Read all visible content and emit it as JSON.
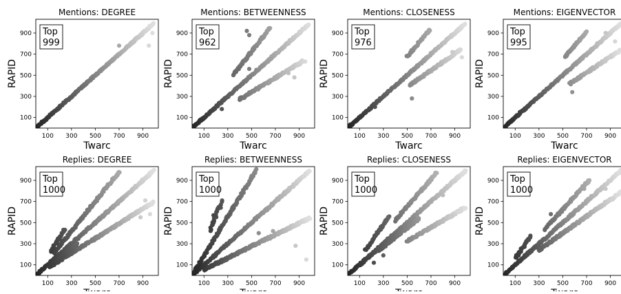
{
  "chart_data": [
    {
      "type": "scatter",
      "title": "Mentions: DEGREE",
      "xlabel": "Twarc",
      "ylabel": "RAPID",
      "annotation": {
        "line1": "Top",
        "line2": "999"
      },
      "xticks": [
        100,
        300,
        500,
        700,
        900
      ],
      "yticks": [
        100,
        300,
        500,
        700,
        900
      ],
      "xlim": [
        0,
        1030
      ],
      "ylim": [
        0,
        1030
      ],
      "series": [
        {
          "slope": 1.0,
          "from": 0,
          "to": 990,
          "spread": 8
        }
      ],
      "outliers": [
        [
          950,
          780
        ],
        [
          980,
          900
        ],
        [
          700,
          780
        ]
      ]
    },
    {
      "type": "scatter",
      "title": "Mentions: BETWEENNESS",
      "xlabel": "Twarc",
      "ylabel": "RAPID",
      "annotation": {
        "line1": "Top",
        "line2": "962"
      },
      "xticks": [
        100,
        300,
        500,
        700,
        900
      ],
      "yticks": [
        100,
        300,
        500,
        700,
        900
      ],
      "xlim": [
        0,
        1030
      ],
      "ylim": [
        0,
        1030
      ],
      "series": [
        {
          "slope": 1.0,
          "from": 0,
          "to": 980,
          "spread": 8
        },
        {
          "slope": 1.45,
          "from": 350,
          "to": 650,
          "spread": 10
        },
        {
          "slope": 0.68,
          "from": 400,
          "to": 930,
          "spread": 10
        }
      ],
      "outliers": [
        [
          460,
          920
        ],
        [
          480,
          880
        ],
        [
          250,
          180
        ],
        [
          950,
          630
        ],
        [
          810,
          520
        ],
        [
          860,
          480
        ],
        [
          480,
          560
        ]
      ]
    },
    {
      "type": "scatter",
      "title": "Mentions: CLOSENESS",
      "xlabel": "Twarc",
      "ylabel": "RAPID",
      "annotation": {
        "line1": "Top",
        "line2": "976"
      },
      "xticks": [
        100,
        300,
        500,
        700,
        900
      ],
      "yticks": [
        100,
        300,
        500,
        700,
        900
      ],
      "xlim": [
        0,
        1030
      ],
      "ylim": [
        0,
        1030
      ],
      "series": [
        {
          "slope": 1.0,
          "from": 0,
          "to": 990,
          "spread": 8
        },
        {
          "slope": 1.35,
          "from": 500,
          "to": 690,
          "spread": 9
        },
        {
          "slope": 0.78,
          "from": 520,
          "to": 950,
          "spread": 9
        }
      ],
      "outliers": [
        [
          540,
          280
        ],
        [
          230,
          200
        ],
        [
          960,
          670
        ],
        [
          880,
          720
        ]
      ]
    },
    {
      "type": "scatter",
      "title": "Mentions: EIGENVECTOR",
      "xlabel": "Twarc",
      "ylabel": "RAPID",
      "annotation": {
        "line1": "Top",
        "line2": "995"
      },
      "xticks": [
        100,
        300,
        500,
        700,
        900
      ],
      "yticks": [
        100,
        300,
        500,
        700,
        900
      ],
      "xlim": [
        0,
        1030
      ],
      "ylim": [
        0,
        1030
      ],
      "series": [
        {
          "slope": 1.0,
          "from": 0,
          "to": 990,
          "spread": 8
        },
        {
          "slope": 1.3,
          "from": 520,
          "to": 700,
          "spread": 9
        },
        {
          "slope": 0.75,
          "from": 560,
          "to": 980,
          "spread": 9
        }
      ],
      "outliers": [
        [
          580,
          340
        ],
        [
          940,
          820
        ],
        [
          860,
          900
        ],
        [
          900,
          680
        ]
      ]
    },
    {
      "type": "scatter",
      "title": "Replies: DEGREE",
      "xlabel": "Twarc",
      "ylabel": "RAPID",
      "annotation": {
        "line1": "Top",
        "line2": "1000"
      },
      "xticks": [
        100,
        300,
        500,
        700,
        900
      ],
      "yticks": [
        100,
        300,
        500,
        700,
        900
      ],
      "xlim": [
        0,
        1030
      ],
      "ylim": [
        0,
        1030
      ],
      "series": [
        {
          "slope": 1.0,
          "from": 0,
          "to": 990,
          "spread": 9
        },
        {
          "slope": 1.4,
          "from": 150,
          "to": 700,
          "spread": 10
        },
        {
          "slope": 0.7,
          "from": 120,
          "to": 990,
          "spread": 10
        },
        {
          "slope": 1.8,
          "from": 130,
          "to": 240,
          "spread": 14
        },
        {
          "slope": 0.85,
          "from": 150,
          "to": 350,
          "spread": 10
        }
      ],
      "outliers": [
        [
          880,
          550
        ],
        [
          960,
          580
        ],
        [
          700,
          490
        ],
        [
          920,
          710
        ]
      ]
    },
    {
      "type": "scatter",
      "title": "Replies: BETWEENNESS",
      "xlabel": "Twarc",
      "ylabel": "RAPID",
      "annotation": {
        "line1": "Top",
        "line2": "1000"
      },
      "xticks": [
        100,
        300,
        500,
        700,
        900
      ],
      "yticks": [
        100,
        300,
        500,
        700,
        900
      ],
      "xlim": [
        0,
        1030
      ],
      "ylim": [
        0,
        1030
      ],
      "series": [
        {
          "slope": 1.0,
          "from": 0,
          "to": 990,
          "spread": 9
        },
        {
          "slope": 1.85,
          "from": 0,
          "to": 540,
          "spread": 10
        },
        {
          "slope": 0.55,
          "from": 100,
          "to": 990,
          "spread": 10
        },
        {
          "slope": 2.8,
          "from": 150,
          "to": 250,
          "spread": 16
        }
      ],
      "outliers": [
        [
          190,
          930
        ],
        [
          200,
          820
        ],
        [
          180,
          570
        ],
        [
          870,
          280
        ],
        [
          960,
          150
        ],
        [
          560,
          400
        ],
        [
          680,
          420
        ],
        [
          200,
          120
        ],
        [
          220,
          110
        ]
      ]
    },
    {
      "type": "scatter",
      "title": "Replies: CLOSENESS",
      "xlabel": "Twarc",
      "ylabel": "RAPID",
      "annotation": {
        "line1": "Top",
        "line2": "1000"
      },
      "xticks": [
        100,
        300,
        500,
        700,
        900
      ],
      "yticks": [
        100,
        300,
        500,
        700,
        900
      ],
      "xlim": [
        0,
        1030
      ],
      "ylim": [
        0,
        1030
      ],
      "series": [
        {
          "slope": 1.0,
          "from": 0,
          "to": 990,
          "spread": 9
        },
        {
          "slope": 1.3,
          "from": 400,
          "to": 750,
          "spread": 10
        },
        {
          "slope": 0.65,
          "from": 500,
          "to": 990,
          "spread": 10
        },
        {
          "slope": 1.6,
          "from": 150,
          "to": 350,
          "spread": 10
        },
        {
          "slope": 0.9,
          "from": 250,
          "to": 600,
          "spread": 9
        },
        {
          "slope": 2.0,
          "from": 560,
          "to": 620,
          "spread": 20
        }
      ],
      "outliers": [
        [
          220,
          120
        ],
        [
          300,
          190
        ],
        [
          950,
          630
        ],
        [
          880,
          560
        ],
        [
          800,
          760
        ]
      ]
    },
    {
      "type": "scatter",
      "title": "Replies: EIGENVECTOR",
      "xlabel": "Twarc",
      "ylabel": "RAPID",
      "annotation": {
        "line1": "Top",
        "line2": "1000"
      },
      "xticks": [
        100,
        300,
        500,
        700,
        900
      ],
      "yticks": [
        100,
        300,
        500,
        700,
        900
      ],
      "xlim": [
        0,
        1030
      ],
      "ylim": [
        0,
        1030
      ],
      "series": [
        {
          "slope": 1.0,
          "from": 0,
          "to": 990,
          "spread": 9
        },
        {
          "slope": 1.25,
          "from": 350,
          "to": 720,
          "spread": 10
        },
        {
          "slope": 0.8,
          "from": 450,
          "to": 990,
          "spread": 10
        },
        {
          "slope": 0.8,
          "from": 300,
          "to": 600,
          "spread": 9
        },
        {
          "slope": 1.6,
          "from": 100,
          "to": 230,
          "spread": 12
        }
      ],
      "outliers": [
        [
          400,
          580
        ],
        [
          680,
          820
        ],
        [
          920,
          720
        ],
        [
          860,
          820
        ]
      ]
    }
  ]
}
